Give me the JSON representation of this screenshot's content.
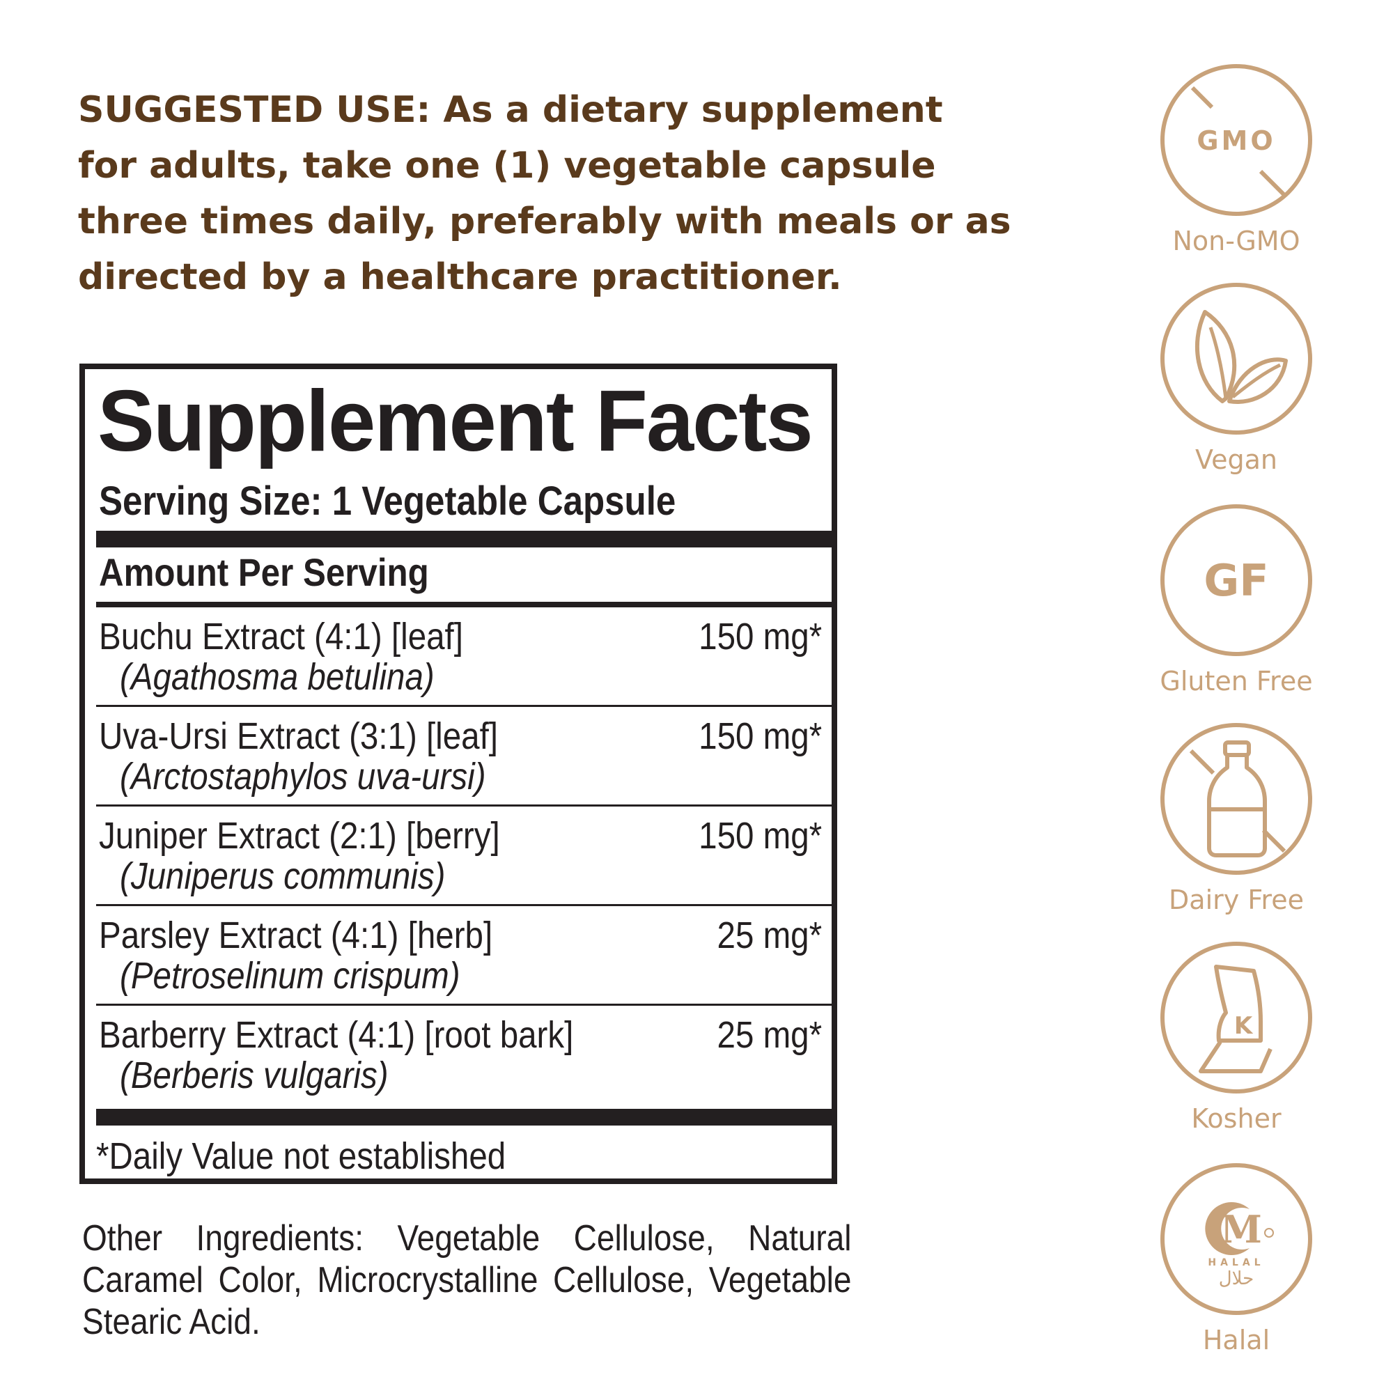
{
  "suggested_use": "SUGGESTED USE: As a dietary supplement for adults, take one (1) vegetable capsule three times daily, preferably with meals or as directed by a healthcare practitioner.",
  "supplement_facts": {
    "title": "Supplement Facts",
    "serving_size": "Serving Size: 1 Vegetable Capsule",
    "amount_per_serving": "Amount Per Serving",
    "rows": [
      {
        "name": "Buchu Extract (4:1) [leaf]",
        "latin": "(Agathosma betulina)",
        "amount": "150 mg*"
      },
      {
        "name": "Uva-Ursi Extract (3:1) [leaf]",
        "latin": "(Arctostaphylos uva-ursi)",
        "amount": "150 mg*"
      },
      {
        "name": "Juniper Extract (2:1) [berry]",
        "latin": "(Juniperus communis)",
        "amount": "150 mg*"
      },
      {
        "name": "Parsley Extract (4:1) [herb]",
        "latin": "(Petroselinum crispum)",
        "amount": "25 mg*"
      },
      {
        "name": "Barberry Extract (4:1) [root bark]",
        "latin": "(Berberis vulgaris)",
        "amount": "25 mg*"
      }
    ],
    "footnote": "*Daily Value not established"
  },
  "other_ingredients": "Other Ingredients: Vegetable Cellulose, Natural Caramel Color, Microcrystalline Cellulose, Vegetable Stearic Acid.",
  "badges": [
    {
      "icon": "no-gmo-icon",
      "inner_text": "GMO",
      "label": "Non-GMO"
    },
    {
      "icon": "vegan-leaf-icon",
      "label": "Vegan"
    },
    {
      "icon": "gluten-free-icon",
      "inner_text": "GF",
      "label": "Gluten Free"
    },
    {
      "icon": "dairy-free-bottle-icon",
      "label": "Dairy Free"
    },
    {
      "icon": "kosher-k-icon",
      "inner_text": "K",
      "label": "Kosher"
    },
    {
      "icon": "halal-m-icon",
      "inner_text": "M",
      "sub_text": "HALAL",
      "arabic_text": "حلال",
      "label": "Halal"
    }
  ],
  "colors": {
    "heading_brown": "#5a3a1c",
    "badge_tan": "#c8a27a",
    "label_ink": "#231f20"
  }
}
